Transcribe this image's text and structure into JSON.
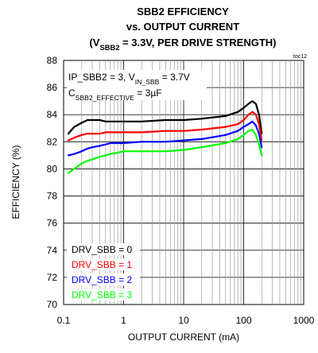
{
  "chart_data": {
    "type": "line",
    "title_lines": [
      {
        "pre": "SBB2 EFFICIENCY"
      },
      {
        "pre": "vs. OUTPUT CURRENT"
      },
      {
        "pre": "(V",
        "sub": "SBB2",
        "post": " = 3.3V, PER DRIVE STRENGTH)"
      }
    ],
    "tag": "toc12",
    "conditions": [
      {
        "pre": "IP_SBB2 = 3, V",
        "sub": "IN_SBB",
        "post": " = 3.7V"
      },
      {
        "pre": "C",
        "sub": "SBB2_EFFECTIVE",
        "post": " = 3µF"
      }
    ],
    "xlabel": "OUTPUT CURRENT (mA)",
    "ylabel": "EFFICIENCY (%)",
    "x_scale": "log",
    "xlim": [
      0.1,
      1000
    ],
    "ylim": [
      70,
      88
    ],
    "x_ticks": [
      "0.1",
      "1",
      "10",
      "100",
      "1000"
    ],
    "x_tick_values": [
      0.1,
      1,
      10,
      100,
      1000
    ],
    "y_ticks": [
      "70",
      "72",
      "74",
      "76",
      "78",
      "80",
      "82",
      "84",
      "86",
      "88"
    ],
    "y_tick_values": [
      70,
      72,
      74,
      76,
      78,
      80,
      82,
      84,
      86,
      88
    ],
    "grid": true,
    "legend_position": "bottom-left",
    "series": [
      {
        "name": "DRV_SBB = 0",
        "color": "#000000",
        "x": [
          0.12,
          0.15,
          0.2,
          0.25,
          0.3,
          0.4,
          0.5,
          0.6,
          0.8,
          1,
          2,
          5,
          10,
          20,
          50,
          80,
          100,
          120,
          140,
          160,
          180,
          200
        ],
        "y": [
          82.6,
          83.1,
          83.4,
          83.6,
          83.6,
          83.6,
          83.5,
          83.5,
          83.5,
          83.5,
          83.5,
          83.6,
          83.6,
          83.7,
          83.9,
          84.2,
          84.5,
          84.8,
          85.0,
          84.8,
          84.0,
          82.6
        ]
      },
      {
        "name": "DRV_SBB = 1",
        "color": "#ff0000",
        "x": [
          0.12,
          0.15,
          0.2,
          0.25,
          0.3,
          0.4,
          0.5,
          0.6,
          0.8,
          1,
          2,
          5,
          10,
          20,
          50,
          80,
          100,
          120,
          140,
          160,
          180,
          200
        ],
        "y": [
          82.1,
          82.3,
          82.5,
          82.6,
          82.6,
          82.6,
          82.7,
          82.7,
          82.7,
          82.7,
          82.7,
          82.8,
          82.8,
          82.9,
          83.1,
          83.3,
          83.6,
          84.0,
          84.2,
          84.0,
          83.3,
          82.1
        ]
      },
      {
        "name": "DRV_SBB = 2",
        "color": "#0000ff",
        "x": [
          0.12,
          0.15,
          0.2,
          0.25,
          0.3,
          0.4,
          0.5,
          0.6,
          0.8,
          1,
          2,
          5,
          10,
          20,
          50,
          80,
          100,
          120,
          140,
          160,
          180,
          200
        ],
        "y": [
          81.0,
          81.1,
          81.3,
          81.5,
          81.6,
          81.7,
          81.8,
          81.9,
          81.9,
          81.9,
          82.0,
          82.0,
          82.1,
          82.2,
          82.5,
          82.8,
          83.1,
          83.3,
          83.5,
          83.2,
          82.6,
          81.6
        ]
      },
      {
        "name": "DRV_SBB = 3",
        "color": "#00ff00",
        "x": [
          0.12,
          0.15,
          0.2,
          0.25,
          0.3,
          0.4,
          0.5,
          0.6,
          0.8,
          1,
          2,
          5,
          10,
          20,
          50,
          80,
          100,
          120,
          140,
          160,
          180,
          200
        ],
        "y": [
          79.7,
          80.0,
          80.4,
          80.6,
          80.7,
          80.9,
          81.0,
          81.1,
          81.2,
          81.3,
          81.3,
          81.3,
          81.4,
          81.6,
          81.9,
          82.2,
          82.5,
          82.8,
          82.9,
          82.5,
          81.8,
          81.0
        ]
      }
    ]
  }
}
